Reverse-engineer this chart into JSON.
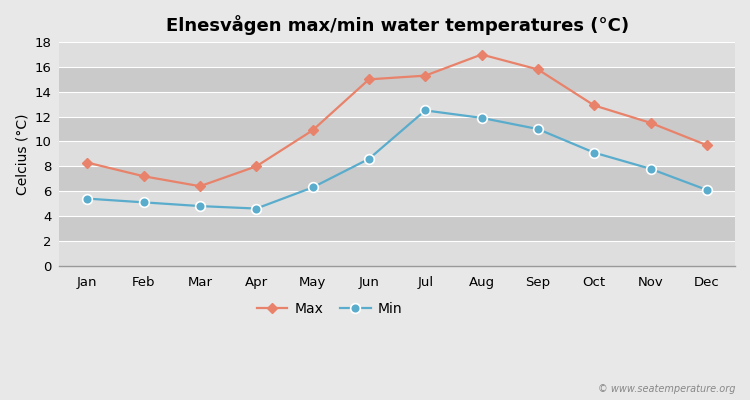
{
  "title": "Elnesvågen max/min water temperatures (°C)",
  "ylabel": "Celcius (°C)",
  "months": [
    "Jan",
    "Feb",
    "Mar",
    "Apr",
    "May",
    "Jun",
    "Jul",
    "Aug",
    "Sep",
    "Oct",
    "Nov",
    "Dec"
  ],
  "max_values": [
    8.3,
    7.2,
    6.4,
    8.0,
    10.9,
    15.0,
    15.3,
    17.0,
    15.8,
    12.9,
    11.5,
    9.7
  ],
  "min_values": [
    5.4,
    5.1,
    4.8,
    4.6,
    6.3,
    8.6,
    12.5,
    11.9,
    11.0,
    9.1,
    7.8,
    6.1
  ],
  "max_color": "#e8826a",
  "min_color": "#5aaccc",
  "bg_color": "#e8e8e8",
  "band_light": "#e0e0e0",
  "band_dark": "#d0d0d0",
  "grid_color": "#ffffff",
  "ylim": [
    0,
    18
  ],
  "yticks": [
    0,
    2,
    4,
    6,
    8,
    10,
    12,
    14,
    16,
    18
  ],
  "watermark": "© www.seatemperature.org",
  "title_fontsize": 13,
  "label_fontsize": 10,
  "tick_fontsize": 9.5
}
